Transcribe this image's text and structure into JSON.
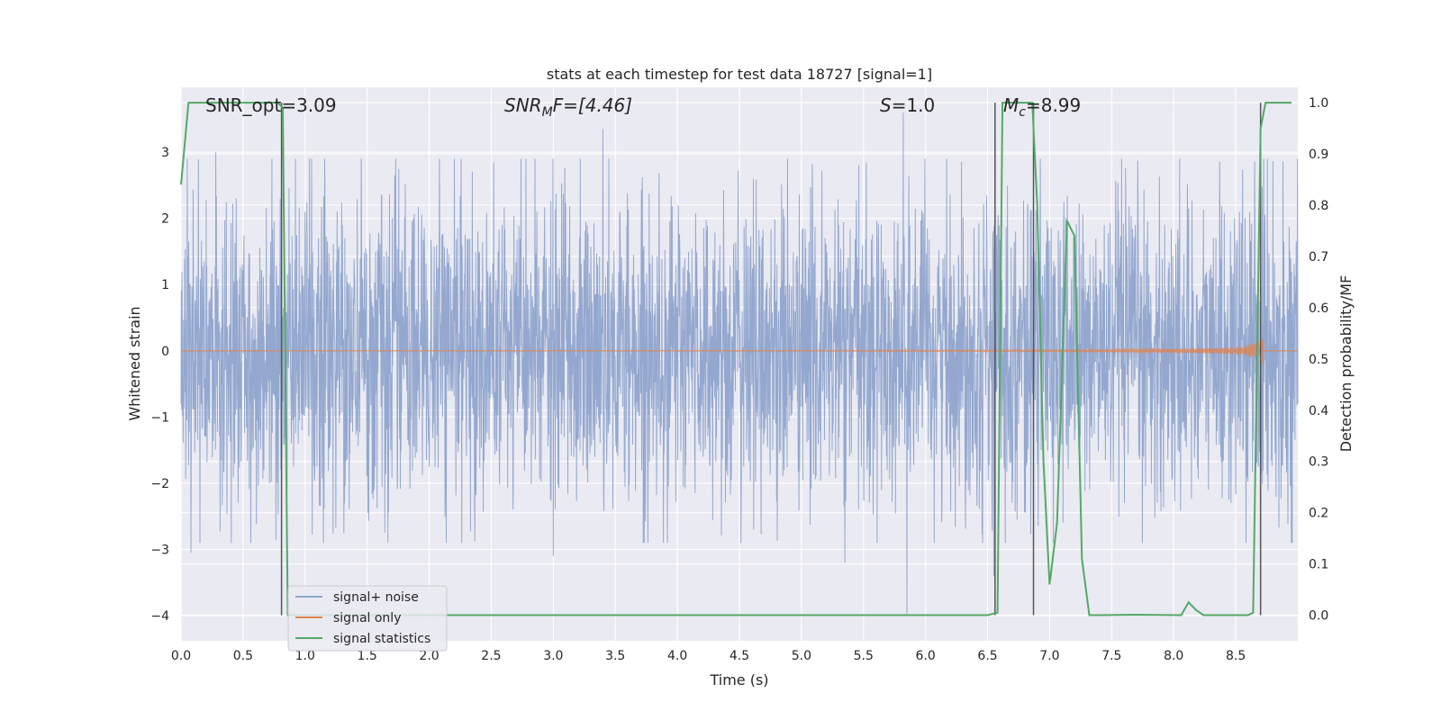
{
  "chart_data": {
    "type": "line",
    "title": "stats at each timestep for test data 18727 [signal=1]",
    "xlabel": "Time (s)",
    "ylabel_left": "Whitened strain",
    "ylabel_right": "Detection probability/MF",
    "xlim": [
      0.0,
      9.0
    ],
    "ylim_left": [
      -4.38,
      3.98
    ],
    "ylim_right": [
      -0.05,
      1.03
    ],
    "x_ticks": [
      "0.0",
      "0.5",
      "1.0",
      "1.5",
      "2.0",
      "2.5",
      "3.0",
      "3.5",
      "4.0",
      "4.5",
      "5.0",
      "5.5",
      "6.0",
      "6.5",
      "7.0",
      "7.5",
      "8.0",
      "8.5"
    ],
    "x_tick_values": [
      0.0,
      0.5,
      1.0,
      1.5,
      2.0,
      2.5,
      3.0,
      3.5,
      4.0,
      4.5,
      5.0,
      5.5,
      6.0,
      6.5,
      7.0,
      7.5,
      8.0,
      8.5
    ],
    "y_left_ticks": [
      "3",
      "2",
      "1",
      "0",
      "−1",
      "−2",
      "−3",
      "−4"
    ],
    "y_left_tick_values": [
      3,
      2,
      1,
      0,
      -1,
      -2,
      -3,
      -4
    ],
    "y_right_ticks": [
      "1.0",
      "0.9",
      "0.8",
      "0.7",
      "0.6",
      "0.5",
      "0.4",
      "0.3",
      "0.2",
      "0.1",
      "0.0"
    ],
    "y_right_tick_values": [
      1.0,
      0.9,
      0.8,
      0.7,
      0.6,
      0.5,
      0.4,
      0.3,
      0.2,
      0.1,
      0.0
    ],
    "grid": true,
    "legend_placement": "lower-left",
    "annotations": {
      "snr_opt": "SNR_opt=3.09",
      "snr_mf_prefix": "SNR",
      "snr_mf_sub": "M",
      "snr_mf_suffix": "F=[4.46]",
      "s_prefix": "S",
      "s_suffix": "=1.0",
      "mc_prefix": "M",
      "mc_sub": "c",
      "mc_suffix": "=8.99"
    },
    "series": [
      {
        "name": "signal+ noise",
        "color": "#8fa4cc",
        "kind": "noise",
        "amplitude_envelope": 1.9,
        "spike_x": [
          0.08,
          0.28,
          0.8,
          3.4,
          3.0,
          5.82,
          5.85,
          5.35,
          6.55
        ],
        "spike_y": [
          -3.05,
          3.0,
          2.3,
          3.35,
          -3.1,
          3.6,
          -4.0,
          -3.2,
          -3.4
        ]
      },
      {
        "name": "signal only",
        "color": "#dd8452",
        "kind": "chirp",
        "chirp_end_x": 8.72,
        "chirp_peak_amplitude": 0.2
      },
      {
        "name": "signal statistics",
        "color": "#55a868",
        "kind": "probability",
        "x": [
          0.0,
          0.06,
          0.1,
          0.5,
          0.78,
          0.82,
          0.86,
          0.9,
          1.0,
          6.5,
          6.58,
          6.62,
          6.66,
          6.8,
          6.86,
          6.9,
          6.95,
          7.0,
          7.06,
          7.14,
          7.2,
          7.26,
          7.32,
          7.4,
          7.7,
          8.06,
          8.12,
          8.18,
          8.24,
          8.6,
          8.64,
          8.7,
          8.74,
          8.78,
          8.95
        ],
        "y": [
          0.84,
          1.0,
          1.0,
          1.0,
          1.0,
          0.99,
          0.0,
          0.0,
          0.0,
          0.0,
          0.005,
          1.0,
          1.0,
          1.0,
          1.0,
          0.8,
          0.3,
          0.06,
          0.18,
          0.77,
          0.74,
          0.11,
          0.0,
          0.0,
          0.001,
          0.0,
          0.025,
          0.01,
          0.0,
          0.0,
          0.005,
          0.95,
          1.0,
          1.0,
          1.0
        ]
      }
    ],
    "vertical_markers_x": [
      0.81,
      6.56,
      6.87,
      8.7
    ],
    "colors": {
      "plot_background": "#eaeaf2",
      "grid": "#ffffff",
      "marker_line": "#555555"
    }
  }
}
